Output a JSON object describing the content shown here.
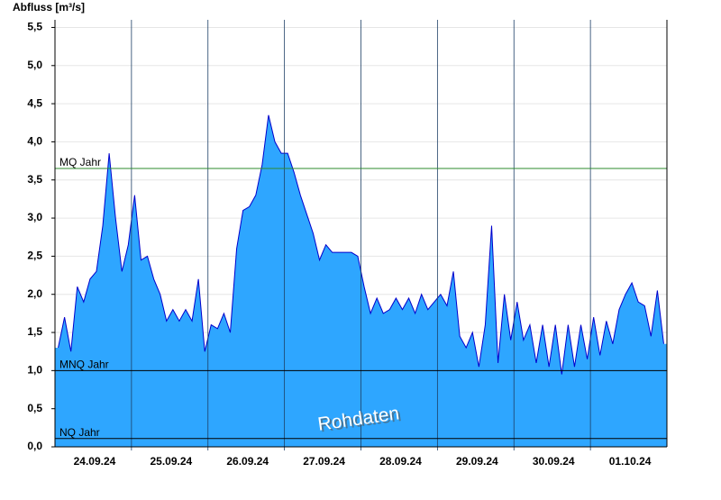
{
  "chart_data": {
    "type": "area",
    "ylabel": "Abfluss [m³/s]",
    "categories": [
      null,
      null,
      null,
      null,
      null,
      null,
      "24.09.24",
      null,
      null,
      null,
      null,
      null,
      null,
      null,
      null,
      null,
      null,
      null,
      "25.09.24",
      null,
      null,
      null,
      null,
      null,
      null,
      null,
      null,
      null,
      null,
      null,
      "26.09.24",
      null,
      null,
      null,
      null,
      null,
      null,
      null,
      null,
      null,
      null,
      null,
      "27.09.24",
      null,
      null,
      null,
      null,
      null,
      null,
      null,
      null,
      null,
      null,
      null,
      "28.09.24",
      null,
      null,
      null,
      null,
      null,
      null,
      null,
      null,
      null,
      null,
      null,
      "29.09.24",
      null,
      null,
      null,
      null,
      null,
      null,
      null,
      null,
      null,
      null,
      null,
      "30.09.24",
      null,
      null,
      null,
      null,
      null,
      null,
      null,
      null,
      null,
      null,
      null,
      "01.10.24",
      null,
      null,
      null,
      null,
      null
    ],
    "values": [
      1.3,
      1.7,
      1.25,
      2.1,
      1.9,
      2.2,
      2.3,
      2.9,
      3.85,
      3.0,
      2.3,
      2.65,
      3.3,
      2.45,
      2.5,
      2.2,
      2.0,
      1.65,
      1.8,
      1.65,
      1.8,
      1.65,
      2.2,
      1.25,
      1.6,
      1.55,
      1.75,
      1.5,
      2.6,
      3.1,
      3.15,
      3.3,
      3.7,
      4.35,
      4.0,
      3.85,
      3.85,
      3.6,
      3.3,
      3.05,
      2.8,
      2.45,
      2.65,
      2.55,
      2.55,
      2.55,
      2.55,
      2.5,
      2.1,
      1.75,
      1.95,
      1.75,
      1.8,
      1.95,
      1.8,
      1.95,
      1.75,
      2.0,
      1.8,
      1.9,
      2.0,
      1.85,
      2.3,
      1.45,
      1.3,
      1.5,
      1.05,
      1.6,
      2.9,
      1.1,
      2.0,
      1.4,
      1.9,
      1.4,
      1.6,
      1.1,
      1.6,
      1.05,
      1.6,
      0.95,
      1.6,
      1.05,
      1.6,
      1.15,
      1.7,
      1.2,
      1.65,
      1.35,
      1.8,
      2.0,
      2.15,
      1.9,
      1.85,
      1.45,
      2.05,
      1.35
    ],
    "color": "#2ea6ff",
    "line_color": "#0000cc",
    "ylim": [
      0,
      5.6
    ],
    "yticks": [
      {
        "value": 0,
        "label": "0,0"
      },
      {
        "value": 0.5,
        "label": "0,5"
      },
      {
        "value": 1,
        "label": "1,0"
      },
      {
        "value": 1.5,
        "label": "1,5"
      },
      {
        "value": 2,
        "label": "2,0"
      },
      {
        "value": 2.5,
        "label": "2,5"
      },
      {
        "value": 3,
        "label": "3,0"
      },
      {
        "value": 3.5,
        "label": "3,5"
      },
      {
        "value": 4,
        "label": "4,0"
      },
      {
        "value": 4.5,
        "label": "4,5"
      },
      {
        "value": 5,
        "label": "5,0"
      },
      {
        "value": 5.5,
        "label": "5,5"
      }
    ],
    "grid": true,
    "reference_lines": [
      {
        "label": "MQ Jahr",
        "value": 3.65,
        "color": "#2e8b2e"
      },
      {
        "label": "MNQ Jahr",
        "value": 1.0,
        "color": "#000000"
      },
      {
        "label": "NQ Jahr",
        "value": 0.11,
        "color": "#000000"
      }
    ],
    "annotation": "Rohdaten"
  }
}
